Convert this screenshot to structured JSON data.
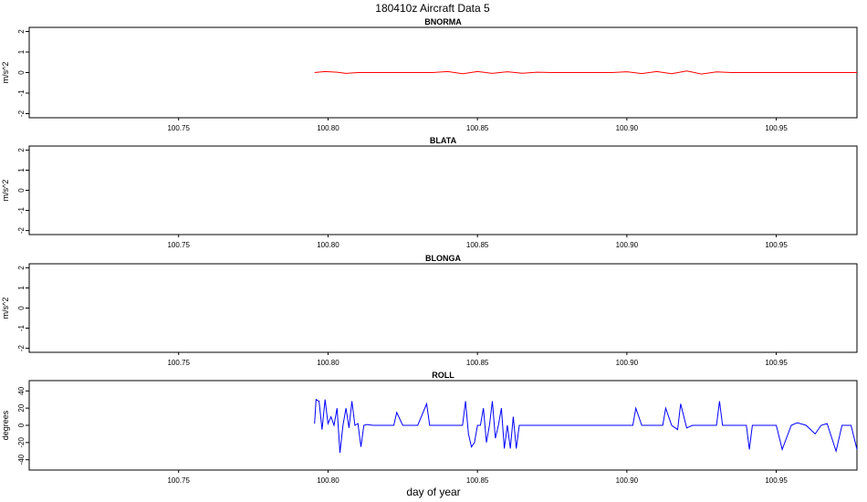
{
  "figure": {
    "title": "180410z   Aircraft Data 5",
    "xlabel": "day of year"
  },
  "chart_data": [
    {
      "type": "line",
      "title": "BNORMA",
      "ylabel": "m/s^2",
      "ylim": [
        -2.2,
        2.2
      ],
      "yticks": [
        -2,
        -1,
        0,
        1,
        2
      ],
      "xlim": [
        100.7,
        100.977
      ],
      "xticks": [
        100.75,
        100.8,
        100.85,
        100.9,
        100.95
      ],
      "xtick_labels": [
        "100.75",
        "100.80",
        "100.85",
        "100.90",
        "100.95"
      ],
      "grid": false,
      "series": [
        {
          "color": "#ff0000",
          "x": [
            100.7955,
            100.799,
            100.803,
            100.806,
            100.81,
            100.815,
            100.82,
            100.825,
            100.83,
            100.835,
            100.84,
            100.845,
            100.85,
            100.855,
            100.86,
            100.865,
            100.87,
            100.875,
            100.88,
            100.885,
            100.89,
            100.895,
            100.9,
            100.905,
            100.91,
            100.915,
            100.92,
            100.925,
            100.93,
            100.935,
            100.94,
            100.945,
            100.95,
            100.955,
            100.96,
            100.965,
            100.97,
            100.977
          ],
          "y": [
            0,
            0.05,
            0.02,
            -0.04,
            0,
            0,
            0,
            0,
            0,
            0,
            0.05,
            -0.06,
            0.05,
            -0.04,
            0.04,
            -0.03,
            0.02,
            0,
            0,
            0,
            0,
            0,
            0.04,
            -0.05,
            0.05,
            -0.06,
            0.08,
            -0.07,
            0.03,
            0,
            0,
            0,
            0,
            0,
            0,
            0,
            0,
            0
          ]
        }
      ]
    },
    {
      "type": "line",
      "title": "BLATA",
      "ylabel": "m/s^2",
      "ylim": [
        -2.2,
        2.2
      ],
      "yticks": [
        -2,
        -1,
        0,
        1,
        2
      ],
      "xlim": [
        100.7,
        100.977
      ],
      "xticks": [
        100.75,
        100.8,
        100.85,
        100.9,
        100.95
      ],
      "xtick_labels": [
        "100.75",
        "100.80",
        "100.85",
        "100.90",
        "100.95"
      ],
      "grid": false,
      "series": []
    },
    {
      "type": "line",
      "title": "BLONGA",
      "ylabel": "m/s^2",
      "ylim": [
        -2.2,
        2.2
      ],
      "yticks": [
        -2,
        -1,
        0,
        1,
        2
      ],
      "xlim": [
        100.7,
        100.977
      ],
      "xticks": [
        100.75,
        100.8,
        100.85,
        100.9,
        100.95
      ],
      "xtick_labels": [
        "100.75",
        "100.80",
        "100.85",
        "100.90",
        "100.95"
      ],
      "grid": false,
      "series": []
    },
    {
      "type": "line",
      "title": "ROLL",
      "ylabel": "degrees",
      "ylim": [
        -52,
        52
      ],
      "yticks": [
        -40,
        -20,
        0,
        20,
        40
      ],
      "xlim": [
        100.7,
        100.977
      ],
      "xticks": [
        100.75,
        100.8,
        100.85,
        100.9,
        100.95
      ],
      "xtick_labels": [
        "100.75",
        "100.80",
        "100.85",
        "100.90",
        "100.95"
      ],
      "grid": false,
      "series": [
        {
          "color": "#0000ff",
          "x": [
            100.7955,
            100.796,
            100.797,
            100.798,
            100.799,
            100.8,
            100.801,
            100.802,
            100.803,
            100.804,
            100.805,
            100.806,
            100.807,
            100.808,
            100.809,
            100.81,
            100.811,
            100.812,
            100.813,
            100.815,
            100.82,
            100.822,
            100.823,
            100.825,
            100.83,
            100.833,
            100.834,
            100.835,
            100.84,
            100.845,
            100.846,
            100.847,
            100.848,
            100.849,
            100.85,
            100.851,
            100.852,
            100.853,
            100.854,
            100.855,
            100.856,
            100.857,
            100.858,
            100.859,
            100.86,
            100.861,
            100.862,
            100.863,
            100.864,
            100.865,
            100.866,
            100.868,
            100.87,
            100.875,
            100.88,
            100.885,
            100.89,
            100.895,
            100.9,
            100.902,
            100.903,
            100.905,
            100.91,
            100.912,
            100.913,
            100.915,
            100.917,
            100.918,
            100.92,
            100.922,
            100.925,
            100.928,
            100.93,
            100.931,
            100.932,
            100.935,
            100.94,
            100.941,
            100.942,
            100.945,
            100.95,
            100.952,
            100.955,
            100.957,
            100.96,
            100.963,
            100.965,
            100.967,
            100.97,
            100.972,
            100.975,
            100.977
          ],
          "y": [
            2,
            30,
            28,
            -5,
            30,
            2,
            10,
            0,
            20,
            -32,
            0,
            20,
            -3,
            28,
            0,
            2,
            -25,
            0,
            1,
            0,
            0,
            0,
            15,
            0,
            0,
            25,
            0,
            0,
            0,
            0,
            28,
            -10,
            -25,
            -20,
            0,
            0,
            20,
            -20,
            0,
            28,
            -15,
            0,
            20,
            -27,
            0,
            -27,
            10,
            -27,
            0,
            0,
            0,
            0,
            0,
            0,
            0,
            0,
            0,
            0,
            0,
            0,
            20,
            0,
            0,
            0,
            20,
            0,
            -5,
            25,
            -3,
            0,
            0,
            0,
            0,
            28,
            0,
            0,
            0,
            -28,
            0,
            0,
            0,
            -28,
            0,
            3,
            0,
            -10,
            0,
            2,
            -30,
            0,
            0,
            -28
          ]
        }
      ]
    }
  ]
}
